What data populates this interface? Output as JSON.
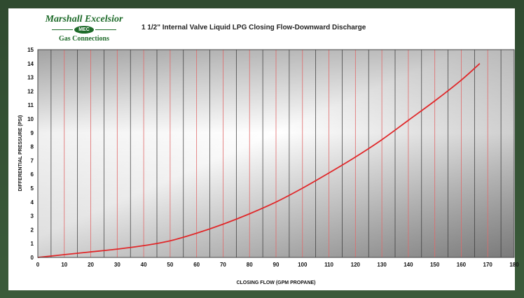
{
  "logo": {
    "line1": "Marshall Excelsior",
    "emblem": "MEC",
    "line2": "Gas Connections"
  },
  "chart_data": {
    "type": "line",
    "title": "1 1/2\" Internal Valve Liquid LPG Closing Flow-Downward Discharge",
    "xlabel": "CLOSING FLOW (GPM PROPANE)",
    "ylabel": "DIFFERENTIAL PRESSURE (PSI)",
    "xlim": [
      0,
      180
    ],
    "ylim": [
      0,
      15
    ],
    "x_ticks": [
      0,
      10,
      20,
      30,
      40,
      50,
      60,
      70,
      80,
      90,
      100,
      110,
      120,
      130,
      140,
      150,
      160,
      170,
      180
    ],
    "y_ticks": [
      0,
      1,
      2,
      3,
      4,
      5,
      6,
      7,
      8,
      9,
      10,
      11,
      12,
      13,
      14,
      15
    ],
    "grid": true,
    "series": [
      {
        "color": "#e0282a",
        "x": [
          0,
          10,
          20,
          30,
          40,
          50,
          60,
          70,
          80,
          90,
          100,
          110,
          120,
          130,
          140,
          150,
          160,
          167
        ],
        "y": [
          0,
          0.2,
          0.4,
          0.6,
          0.85,
          1.2,
          1.75,
          2.4,
          3.15,
          4.0,
          5.0,
          6.1,
          7.25,
          8.5,
          9.9,
          11.3,
          12.8,
          14.0
        ]
      }
    ]
  }
}
